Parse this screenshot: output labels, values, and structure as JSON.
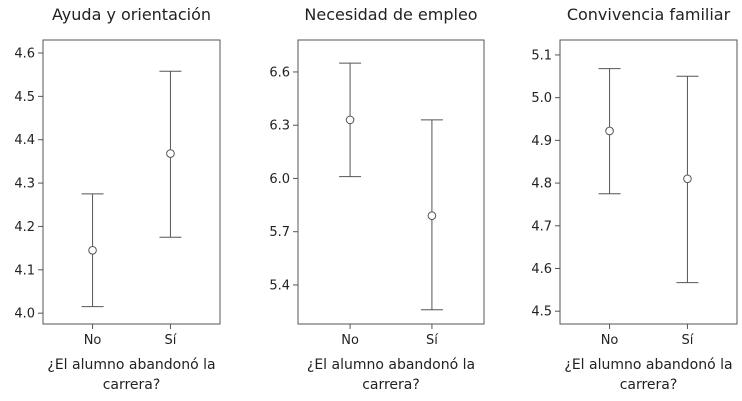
{
  "chart_data": [
    {
      "type": "errorbar",
      "title": "Ayuda y orientación",
      "xlabel": "¿El alumno abandonó la carrera?",
      "ylabel": "",
      "categories": [
        "No",
        "Sí"
      ],
      "values": [
        4.145,
        4.368
      ],
      "lower": [
        4.015,
        4.175
      ],
      "upper": [
        4.275,
        4.558
      ],
      "yticks": [
        "4.0",
        "4.1",
        "4.2",
        "4.3",
        "4.4",
        "4.5",
        "4.6"
      ],
      "ylim": [
        3.975,
        4.63
      ],
      "grid": false
    },
    {
      "type": "errorbar",
      "title": "Necesidad de empleo",
      "xlabel": "¿El alumno abandonó la carrera?",
      "ylabel": "",
      "categories": [
        "No",
        "Sí"
      ],
      "values": [
        6.33,
        5.79
      ],
      "lower": [
        6.01,
        5.26
      ],
      "upper": [
        6.65,
        6.33
      ],
      "yticks": [
        "5.4",
        "5.7",
        "6.0",
        "6.3",
        "6.6"
      ],
      "ylim": [
        5.18,
        6.78
      ],
      "grid": false
    },
    {
      "type": "errorbar",
      "title": "Convivencia familiar",
      "xlabel": "¿El alumno abandonó la carrera?",
      "ylabel": "",
      "categories": [
        "No",
        "Sí"
      ],
      "values": [
        4.922,
        4.81
      ],
      "lower": [
        4.775,
        4.567
      ],
      "upper": [
        5.068,
        5.05
      ],
      "yticks": [
        "4.5",
        "4.6",
        "4.7",
        "4.8",
        "4.9",
        "5.0",
        "5.1"
      ],
      "ylim": [
        4.47,
        5.135
      ],
      "grid": false
    }
  ]
}
